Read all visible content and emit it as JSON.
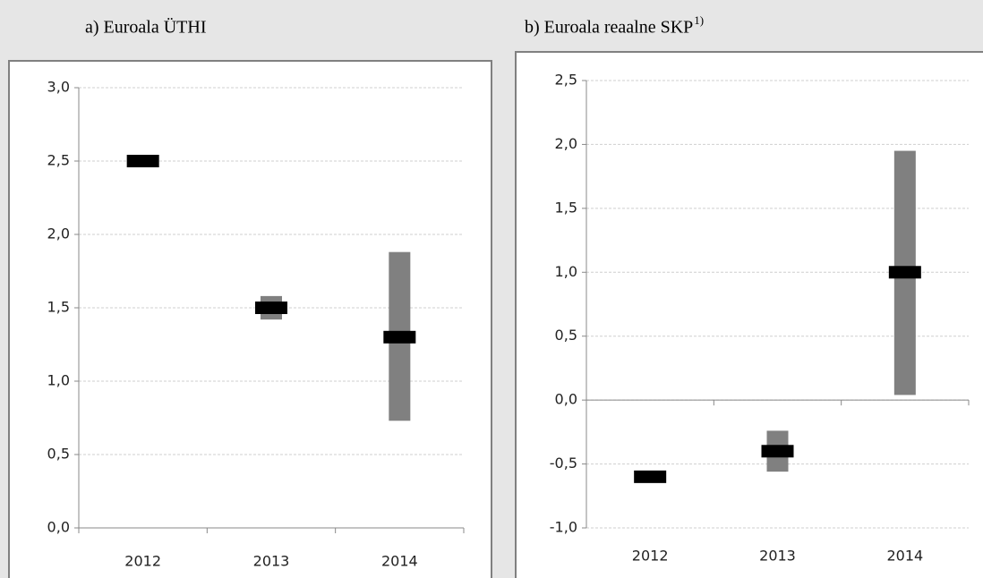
{
  "chart_data": [
    {
      "type": "range",
      "title": "a) Euroala ÜTHI",
      "categories": [
        "2012",
        "2013",
        "2014"
      ],
      "values": [
        2.5,
        1.5,
        1.3
      ],
      "low": [
        null,
        1.42,
        0.73
      ],
      "high": [
        null,
        1.58,
        1.88
      ],
      "color": "#000000",
      "range_color": "#808080",
      "ylim": [
        0,
        3
      ],
      "yticks": [
        {
          "value": 0,
          "label": "0,0"
        },
        {
          "value": 0.5,
          "label": "0,5"
        },
        {
          "value": 1,
          "label": "1,0"
        },
        {
          "value": 1.5,
          "label": "1,5"
        },
        {
          "value": 2,
          "label": "2,0"
        },
        {
          "value": 2.5,
          "label": "2,5"
        },
        {
          "value": 3,
          "label": "3,0"
        }
      ],
      "grid": true
    },
    {
      "type": "range",
      "title": "b) Euroala reaalne SKP",
      "title_note": "1)",
      "categories": [
        "2012",
        "2013",
        "2014"
      ],
      "values": [
        -0.6,
        -0.4,
        1.0
      ],
      "low": [
        null,
        -0.56,
        0.04
      ],
      "high": [
        null,
        -0.24,
        1.95
      ],
      "color": "#000000",
      "range_color": "#808080",
      "ylim": [
        -1,
        2.5
      ],
      "yticks": [
        {
          "value": -1,
          "label": "-1,0"
        },
        {
          "value": -0.5,
          "label": "-0,5"
        },
        {
          "value": 0,
          "label": "0,0"
        },
        {
          "value": 0.5,
          "label": "0,5"
        },
        {
          "value": 1,
          "label": "1,0"
        },
        {
          "value": 1.5,
          "label": "1,5"
        },
        {
          "value": 2,
          "label": "2,0"
        },
        {
          "value": 2.5,
          "label": "2,5"
        }
      ],
      "grid": true
    }
  ]
}
